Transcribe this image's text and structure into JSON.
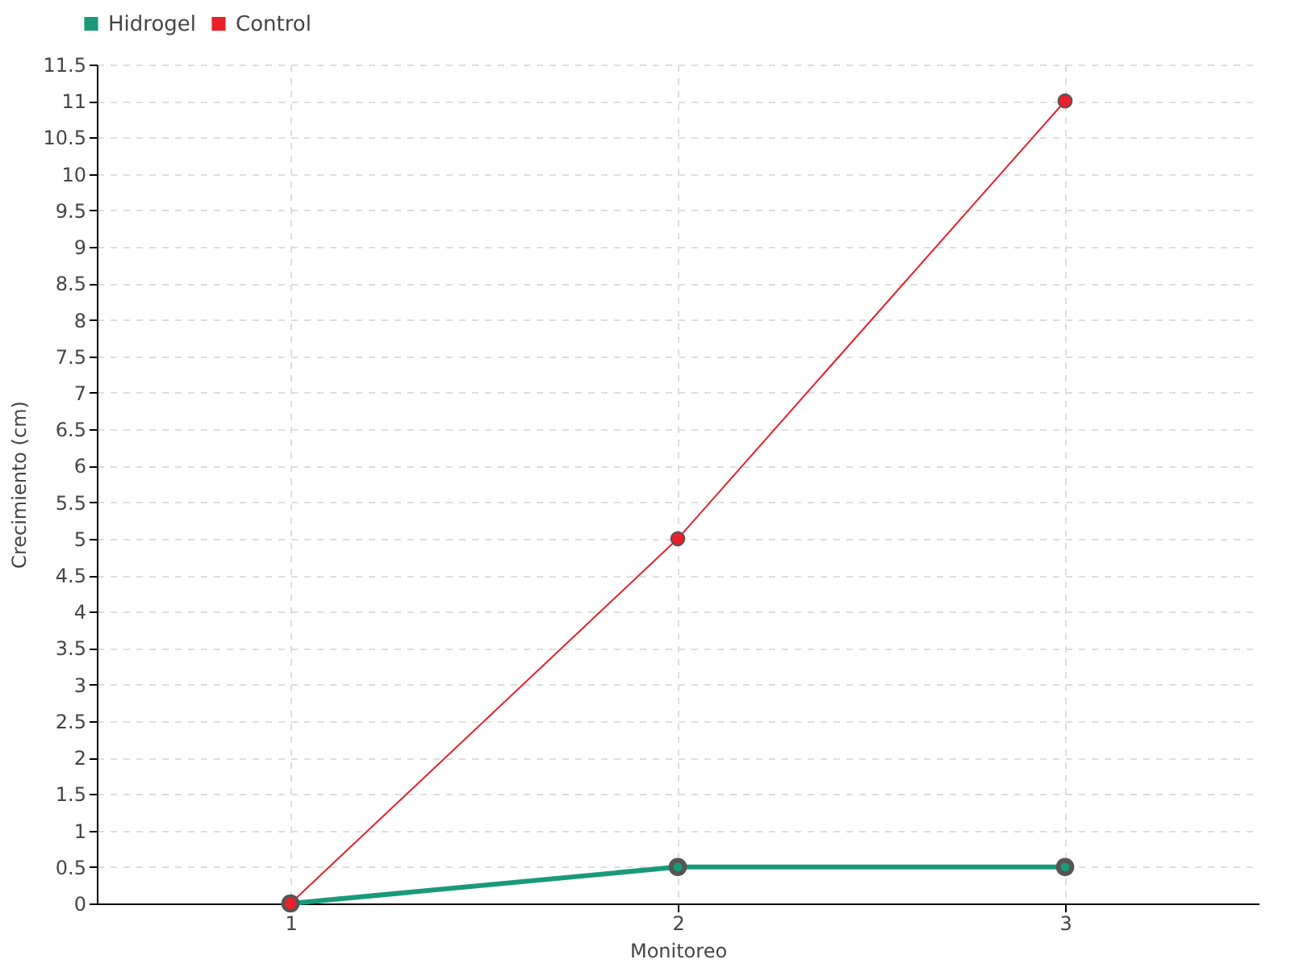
{
  "chart_data": {
    "type": "line",
    "xlabel": "Monitoreo",
    "ylabel": "Crecimiento (cm)",
    "x": [
      1,
      2,
      3
    ],
    "xlim": [
      0.5,
      3.5
    ],
    "xticks": [
      1,
      2,
      3
    ],
    "ylim": [
      0,
      11.5
    ],
    "yticks": [
      0,
      0.5,
      1,
      1.5,
      2,
      2.5,
      3,
      3.5,
      4,
      4.5,
      5,
      5.5,
      6,
      6.5,
      7,
      7.5,
      8,
      8.5,
      9,
      9.5,
      10,
      10.5,
      11,
      11.5
    ],
    "grid": true,
    "legend": "top left",
    "marker": "circle",
    "series": [
      {
        "name": "Hidrogel",
        "color": "#1a9a7a",
        "values": [
          0,
          0.5,
          0.5
        ]
      },
      {
        "name": "Control",
        "color": "#e8202a",
        "values": [
          0,
          5,
          11
        ]
      }
    ]
  }
}
